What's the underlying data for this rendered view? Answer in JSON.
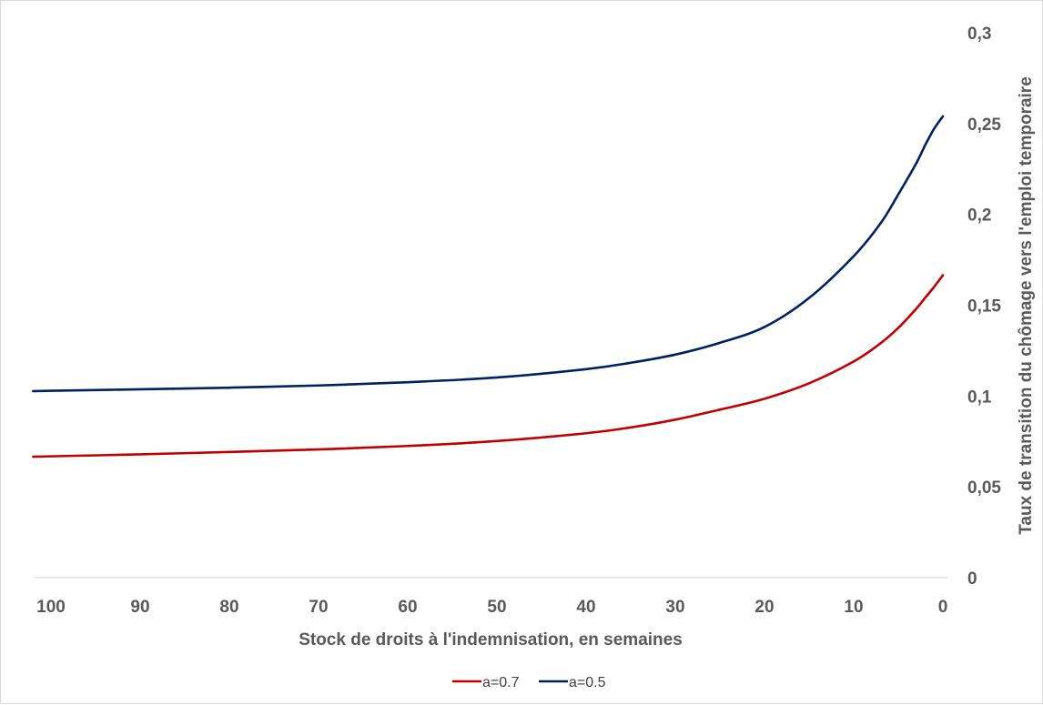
{
  "chart_data": {
    "type": "line",
    "title": "",
    "xlabel": "Stock de droits à l'indemnisation, en semaines",
    "ylabel": "Taux de transition du chômage vers l'emploi temporaire",
    "x_reversed": true,
    "xlim": [
      102,
      0
    ],
    "ylim": [
      0,
      0.3
    ],
    "x_ticks": [
      100,
      90,
      80,
      70,
      60,
      50,
      40,
      30,
      20,
      10,
      0
    ],
    "x_tick_labels": [
      "100",
      "90",
      "80",
      "70",
      "60",
      "50",
      "40",
      "30",
      "20",
      "10",
      "0"
    ],
    "y_ticks": [
      0,
      0.05,
      0.1,
      0.15,
      0.2,
      0.25,
      0.3
    ],
    "y_tick_labels": [
      "0",
      "0,05",
      "0,1",
      "0,15",
      "0,2",
      "0,25",
      "0,3"
    ],
    "y_axis_side": "right",
    "grid": false,
    "legend_position": "bottom",
    "x": [
      102,
      100,
      90,
      80,
      70,
      60,
      50,
      40,
      35,
      30,
      25,
      20,
      15,
      10,
      7,
      5,
      3,
      2,
      1,
      0
    ],
    "series": [
      {
        "name": "a=0.7",
        "color": "#c00000",
        "values": [
          0.0666,
          0.0668,
          0.0679,
          0.0692,
          0.0706,
          0.0725,
          0.0752,
          0.0795,
          0.0827,
          0.087,
          0.0925,
          0.0985,
          0.107,
          0.119,
          0.129,
          0.1375,
          0.148,
          0.154,
          0.16,
          0.1665
        ]
      },
      {
        "name": "a=0.5",
        "color": "#002060",
        "values": [
          0.1027,
          0.1029,
          0.1037,
          0.1046,
          0.1058,
          0.1076,
          0.1102,
          0.1148,
          0.1183,
          0.1228,
          0.1293,
          0.138,
          0.154,
          0.177,
          0.195,
          0.211,
          0.228,
          0.238,
          0.247,
          0.254
        ]
      }
    ]
  }
}
